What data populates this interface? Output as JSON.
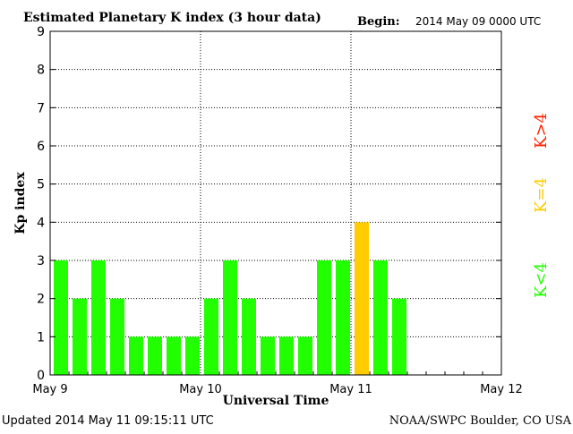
{
  "chart_data": {
    "type": "bar",
    "title": "Estimated Planetary K index (3 hour data)",
    "begin_label": "Begin:",
    "begin_value": "2014 May 09 0000 UTC",
    "xlabel": "Universal Time",
    "ylabel": "Kp index",
    "ylim": [
      0,
      9
    ],
    "yticks": [
      "0",
      "1",
      "2",
      "3",
      "4",
      "5",
      "6",
      "7",
      "8",
      "9"
    ],
    "x_tick_labels": [
      "May 9",
      "May 10",
      "May 11",
      "May 12"
    ],
    "grid": true,
    "bars_per_day": 8,
    "values": [
      3,
      2,
      3,
      2,
      1,
      1,
      1,
      1,
      2,
      3,
      2,
      1,
      1,
      1,
      3,
      3,
      4,
      3,
      2
    ],
    "colors": {
      "below_4": "#22ff00",
      "equal_4": "#ffcc00",
      "above_4": "#ff2200",
      "grid": "#000000"
    },
    "legend": [
      {
        "text": "K<4",
        "color": "#22ff00"
      },
      {
        "text": "K=4",
        "color": "#ffcc00"
      },
      {
        "text": "K>4",
        "color": "#ff2200"
      }
    ]
  },
  "footer": {
    "updated": "Updated 2014 May 11 09:15:11 UTC",
    "credit": "NOAA/SWPC Boulder, CO USA"
  }
}
